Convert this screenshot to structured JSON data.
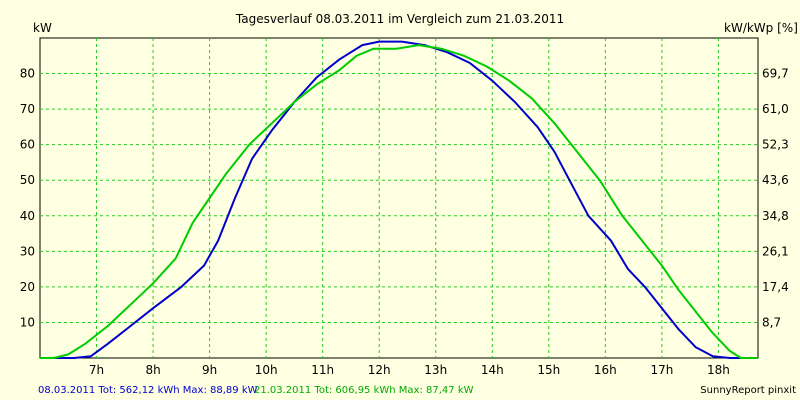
{
  "chart_data": {
    "type": "line",
    "title": "Tagesverlauf 08.03.2011 im Vergleich zum 21.03.2011",
    "y_left_label": "kW",
    "y_right_label": "kW/kWp [%]",
    "xlim": [
      6.0,
      18.7
    ],
    "ylim": [
      0,
      90
    ],
    "x_ticks": [
      {
        "v": 7,
        "label": "7h"
      },
      {
        "v": 8,
        "label": "8h"
      },
      {
        "v": 9,
        "label": "9h"
      },
      {
        "v": 10,
        "label": "10h"
      },
      {
        "v": 11,
        "label": "11h"
      },
      {
        "v": 12,
        "label": "12h"
      },
      {
        "v": 13,
        "label": "13h"
      },
      {
        "v": 14,
        "label": "14h"
      },
      {
        "v": 15,
        "label": "15h"
      },
      {
        "v": 16,
        "label": "16h"
      },
      {
        "v": 17,
        "label": "17h"
      },
      {
        "v": 18,
        "label": "18h"
      }
    ],
    "y_left_ticks": [
      10,
      20,
      30,
      40,
      50,
      60,
      70,
      80
    ],
    "y_right_ticks": [
      {
        "v": 10,
        "label": "8,7"
      },
      {
        "v": 20,
        "label": "17,4"
      },
      {
        "v": 30,
        "label": "26,1"
      },
      {
        "v": 40,
        "label": "34,8"
      },
      {
        "v": 50,
        "label": "43,6"
      },
      {
        "v": 60,
        "label": "52,3"
      },
      {
        "v": 70,
        "label": "61,0"
      },
      {
        "v": 80,
        "label": "69,7"
      }
    ],
    "grid": true,
    "series": [
      {
        "name": "08.03.2011",
        "color": "#0000cc",
        "x": [
          6.0,
          6.6,
          6.9,
          7.2,
          7.6,
          8.0,
          8.5,
          8.9,
          9.15,
          9.45,
          9.75,
          10.1,
          10.5,
          10.9,
          11.3,
          11.7,
          12.0,
          12.4,
          12.8,
          13.2,
          13.6,
          14.0,
          14.4,
          14.8,
          15.1,
          15.4,
          15.7,
          16.1,
          16.4,
          16.7,
          17.0,
          17.3,
          17.6,
          17.9,
          18.2,
          18.6
        ],
        "y": [
          0,
          0,
          0.5,
          4,
          9,
          14,
          20,
          26,
          33,
          45,
          56,
          64,
          72,
          79,
          84,
          88,
          89,
          89,
          88,
          86,
          83,
          78,
          72,
          65,
          58,
          49,
          40,
          33,
          25,
          20,
          14,
          8,
          3,
          0.5,
          0,
          0
        ]
      },
      {
        "name": "21.03.2011",
        "color": "#00cc00",
        "x": [
          6.0,
          6.25,
          6.5,
          6.8,
          7.2,
          7.6,
          8.0,
          8.4,
          8.7,
          9.0,
          9.3,
          9.7,
          10.1,
          10.5,
          10.9,
          11.3,
          11.6,
          11.9,
          12.3,
          12.7,
          13.1,
          13.5,
          13.9,
          14.3,
          14.7,
          15.1,
          15.5,
          15.9,
          16.3,
          16.7,
          17.0,
          17.3,
          17.6,
          17.9,
          18.2,
          18.4,
          18.7
        ],
        "y": [
          0,
          0,
          1,
          4,
          9,
          15,
          21,
          28,
          38,
          45,
          52,
          60,
          66,
          72,
          77,
          81,
          85,
          87,
          87,
          88,
          87,
          85,
          82,
          78,
          73,
          66,
          58,
          50,
          40,
          32,
          26,
          19,
          13,
          7,
          2,
          0,
          0
        ]
      }
    ],
    "footer": [
      {
        "text": "08.03.2011 Tot: 562,12 kWh Max: 88,89 kW",
        "color": "#0000cc"
      },
      {
        "text": "21.03.2011 Tot: 606,95 kWh Max: 87,47 kW",
        "color": "#00aa00"
      }
    ],
    "credit": "SunnyReport pinxit"
  }
}
